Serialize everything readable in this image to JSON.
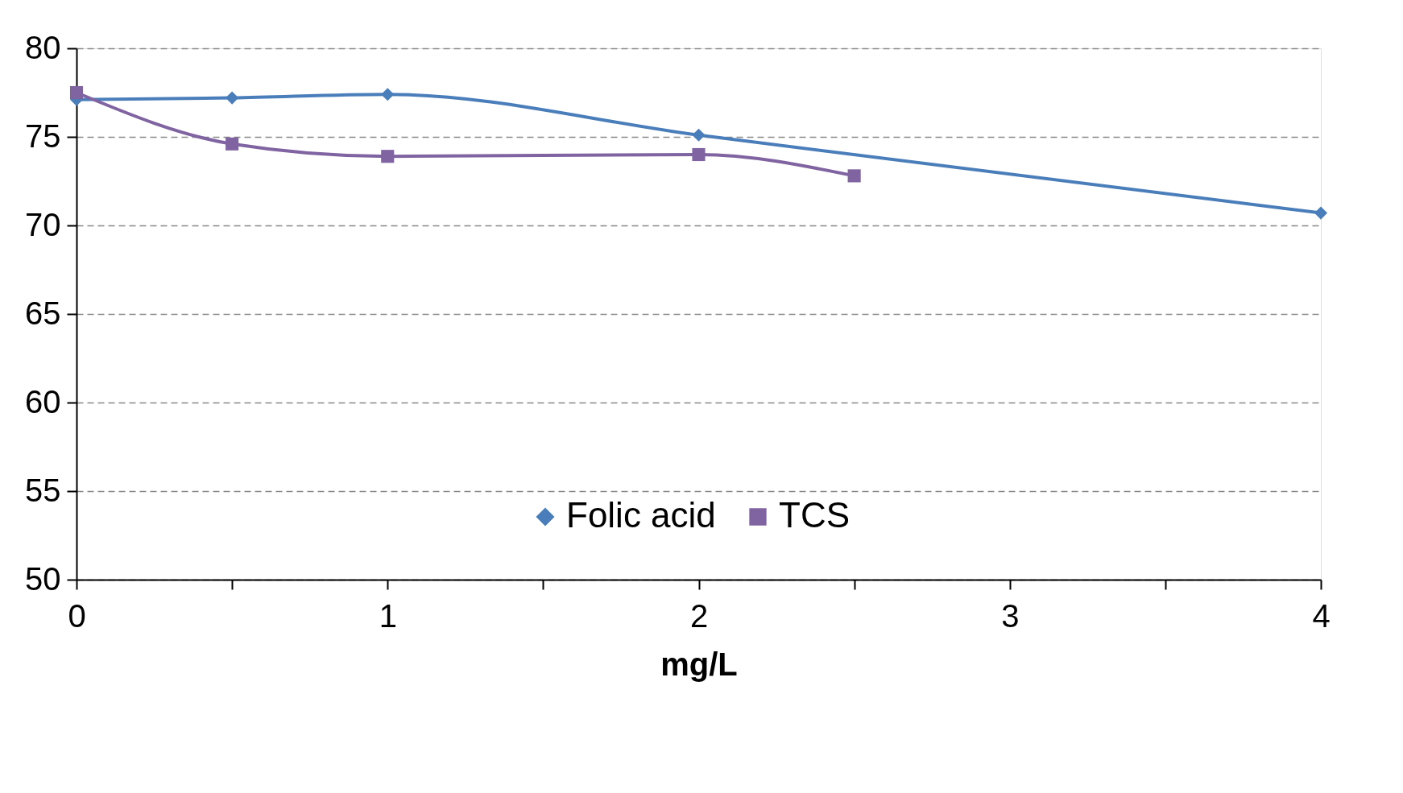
{
  "chart_data": {
    "type": "line",
    "xlabel": "mg/L",
    "xlim": [
      0,
      4
    ],
    "xticks": [
      0,
      {
        "value": 0.5,
        "label": null
      },
      1,
      {
        "value": 1.5,
        "label": null
      },
      2,
      {
        "value": 2.5,
        "label": null
      },
      3,
      {
        "value": 3.5,
        "label": null
      },
      4
    ],
    "ylim": [
      50,
      80
    ],
    "yticks": [
      50,
      55,
      60,
      65,
      70,
      75,
      80
    ],
    "grid": "y",
    "legend": "bottom",
    "line_style": "solid",
    "series": [
      {
        "name": "Folic acid",
        "color": "#4a7ebb",
        "marker": "diamond",
        "x": [
          0,
          0.5,
          1,
          2,
          4
        ],
        "values": [
          77.1,
          77.2,
          77.4,
          75.1,
          70.7
        ]
      },
      {
        "name": "TCS",
        "color": "#8064a2",
        "marker": "square",
        "x": [
          0,
          0.5,
          1,
          2,
          2.5
        ],
        "values": [
          77.5,
          74.6,
          73.9,
          74.0,
          72.8
        ]
      }
    ]
  }
}
